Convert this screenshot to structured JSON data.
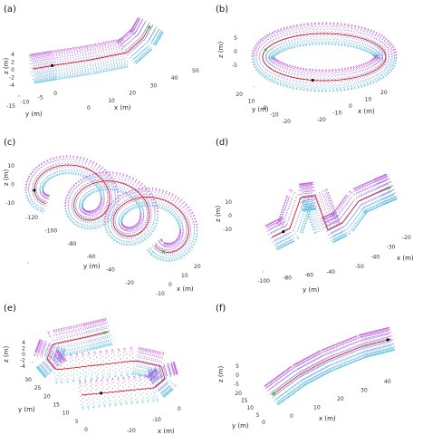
{
  "colors": {
    "cloud_top": "#ee33dd",
    "cloud_bottom": "#33e6e6",
    "path": "#dd2222",
    "start_marker": "#111111",
    "end_marker": "#33cc33"
  },
  "chart_data": [
    {
      "panel": "(a)",
      "type": "scatter3d",
      "xlabel": "x (m)",
      "ylabel": "y (m)",
      "zlabel": "z (m)",
      "xticks": [
        "0",
        "10",
        "20",
        "30",
        "40",
        "50"
      ],
      "yticks": [
        "-15",
        "-10",
        "-5",
        "0"
      ],
      "zticks": [
        "4",
        "2",
        "0",
        "-2",
        "-4"
      ],
      "shape": "bent tube"
    },
    {
      "panel": "(b)",
      "type": "scatter3d",
      "xlabel": "x (m)",
      "ylabel": "y (m)",
      "zlabel": "z (m)",
      "xticks": [
        "-20",
        "-10",
        "0",
        "10",
        "20"
      ],
      "yticks": [
        "-20",
        "-10",
        "0",
        "10",
        "20"
      ],
      "zticks": [
        "5",
        "0",
        "-5"
      ],
      "shape": "torus"
    },
    {
      "panel": "(c)",
      "type": "scatter3d",
      "xlabel": "x (m)",
      "ylabel": "y (m)",
      "zlabel": "z (m)",
      "xticks": [
        "-10",
        "0",
        "10",
        "20"
      ],
      "yticks": [
        "-120",
        "-100",
        "-80",
        "-60",
        "-40",
        "-20"
      ],
      "zticks": [
        "10",
        "0",
        "-10"
      ],
      "shape": "helix"
    },
    {
      "panel": "(d)",
      "type": "scatter3d",
      "xlabel": "x (m)",
      "ylabel": "y (m)",
      "zlabel": "z (m)",
      "xticks": [
        "-50",
        "-40",
        "-30",
        "-20"
      ],
      "yticks": [
        "-100",
        "-80",
        "-60",
        "-40"
      ],
      "zticks": [
        "10",
        "0",
        "-10"
      ],
      "shape": "zig-zag tube"
    },
    {
      "panel": "(e)",
      "type": "scatter3d",
      "xlabel": "x (m)",
      "ylabel": "y (m)",
      "zlabel": "z (m)",
      "xticks": [
        "-20",
        "-10",
        "0"
      ],
      "yticks": [
        "0",
        "5",
        "10",
        "15",
        "20",
        "25",
        "30"
      ],
      "zticks": [
        "4",
        "2",
        "0",
        "-2",
        "-4"
      ],
      "shape": "serpentine tube"
    },
    {
      "panel": "(f)",
      "type": "scatter3d",
      "xlabel": "x (m)",
      "ylabel": "y (m)",
      "zlabel": "z (m)",
      "xticks": [
        "0",
        "10",
        "20",
        "30",
        "40"
      ],
      "yticks": [
        "0",
        "5",
        "10",
        "15",
        "20"
      ],
      "zticks": [
        "5",
        "0",
        "-5"
      ],
      "shape": "long straight tube"
    }
  ]
}
